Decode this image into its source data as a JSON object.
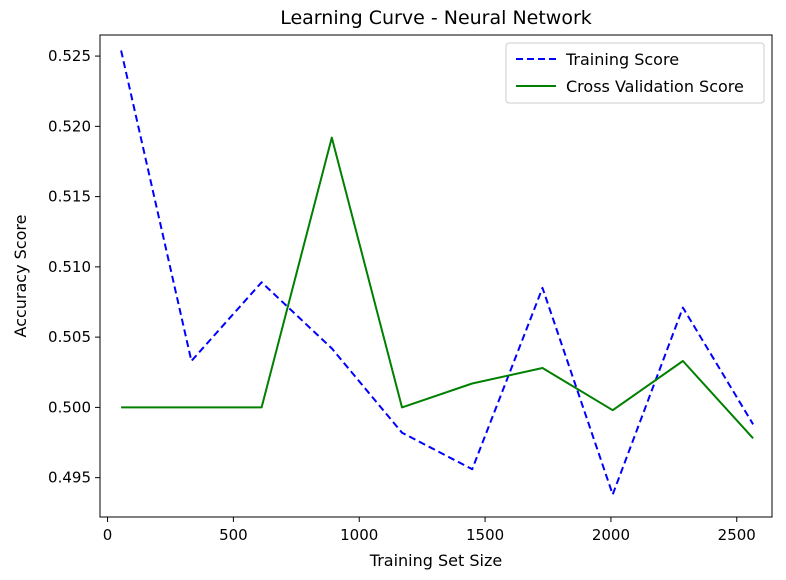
{
  "chart_data": {
    "type": "line",
    "title": "Learning Curve - Neural Network",
    "xlabel": "Training Set Size",
    "ylabel": "Accuracy Score",
    "xlim": [
      -30,
      2640
    ],
    "ylim": [
      0.4922,
      0.5265
    ],
    "xticks": [
      0,
      500,
      1000,
      1500,
      2000,
      2500
    ],
    "xtick_labels": [
      "0",
      "500",
      "1000",
      "1500",
      "2000",
      "2500"
    ],
    "yticks": [
      0.495,
      0.5,
      0.505,
      0.51,
      0.515,
      0.52,
      0.525
    ],
    "ytick_labels": [
      "0.495",
      "0.500",
      "0.505",
      "0.510",
      "0.515",
      "0.520",
      "0.525"
    ],
    "grid": false,
    "legend_position": "top-right",
    "x": [
      54,
      333,
      612,
      891,
      1170,
      1449,
      1728,
      2007,
      2286,
      2565
    ],
    "series": [
      {
        "name": "Training Score",
        "color": "#0000ff",
        "style": "dashed",
        "values": [
          0.5254,
          0.5033,
          0.5089,
          0.5042,
          0.4982,
          0.4956,
          0.5085,
          0.4938,
          0.5071,
          0.4988
        ]
      },
      {
        "name": "Cross Validation Score",
        "color": "#008000",
        "style": "solid",
        "values": [
          0.5,
          0.5,
          0.5,
          0.5192,
          0.5,
          0.5017,
          0.5028,
          0.4998,
          0.5033,
          0.4978
        ]
      }
    ]
  }
}
